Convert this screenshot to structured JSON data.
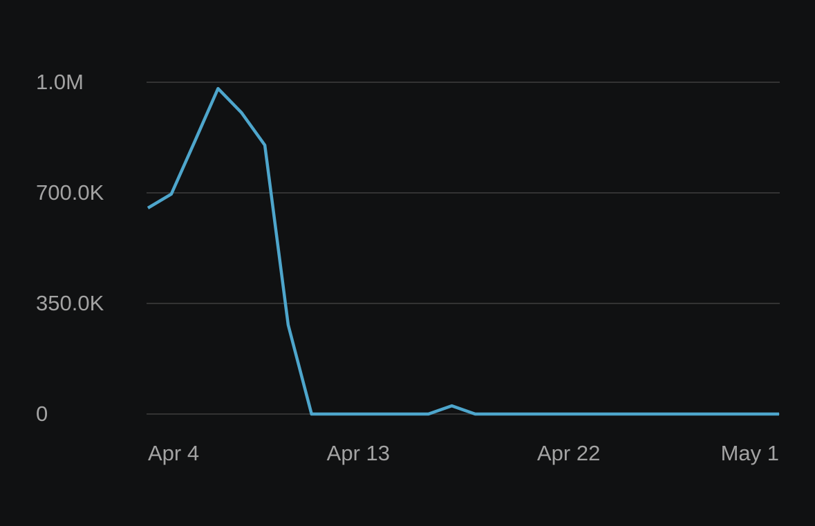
{
  "chart_data": {
    "type": "line",
    "categories": [
      "Apr 4",
      null,
      null,
      null,
      null,
      null,
      null,
      null,
      null,
      "Apr 13",
      null,
      null,
      null,
      null,
      null,
      null,
      null,
      null,
      "Apr 22",
      null,
      null,
      null,
      null,
      null,
      null,
      null,
      null,
      "May 1"
    ],
    "series": [
      {
        "color": "#4ea6cc",
        "values": [
          652000,
          696000,
          862000,
          1030000,
          954000,
          851000,
          282000,
          0,
          0,
          0,
          0,
          0,
          0,
          26000,
          0,
          0,
          0,
          0,
          0,
          0,
          0,
          0,
          0,
          0,
          0,
          0,
          0,
          0
        ]
      }
    ],
    "ylim": [
      0,
      1050000
    ],
    "yticks": [
      0,
      {
        "value": 350000,
        "label": "350.0K"
      },
      {
        "value": 700000,
        "label": "700.0K"
      },
      {
        "value": 1050000,
        "label": "1.0M"
      }
    ],
    "grid": true
  }
}
